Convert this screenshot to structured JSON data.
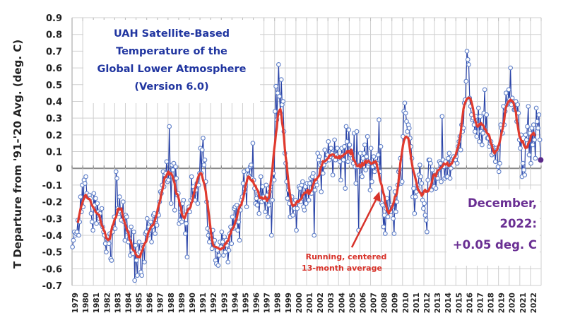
{
  "chart_data": {
    "type": "line",
    "title": [
      "UAH Satellite-Based",
      "Temperature of the",
      "Global Lower Atmosphere",
      "(Version 6.0)"
    ],
    "xlabel": "",
    "ylabel": "T Departure from '91-'20 Avg. (deg. C)",
    "ylim": [
      -0.7,
      0.9
    ],
    "yticks": [
      0.9,
      0.8,
      0.7,
      0.6,
      0.5,
      0.4,
      0.3,
      0.2,
      0.1,
      0,
      -0.1,
      -0.2,
      -0.3,
      -0.4,
      -0.5,
      -0.6,
      -0.7
    ],
    "ytick_labels": [
      "0.9",
      "0.8",
      "0.7",
      "0.6",
      "0.5",
      "0.4",
      "0.3",
      "0.2",
      "0.1",
      "0",
      "-0.1",
      "-0.2",
      "-0.3",
      "-0.4",
      "-0.5",
      "-0.6",
      "-0.7"
    ],
    "xlim": [
      1979,
      2023
    ],
    "xtick_labels": [
      "1979",
      "1980",
      "1981",
      "1982",
      "1983",
      "1984",
      "1985",
      "1986",
      "1987",
      "1988",
      "1989",
      "1990",
      "1991",
      "1992",
      "1993",
      "1994",
      "1995",
      "1996",
      "1997",
      "1998",
      "1999",
      "2000",
      "2001",
      "2002",
      "2003",
      "2004",
      "2005",
      "2006",
      "2007",
      "2008",
      "2009",
      "2010",
      "2011",
      "2012",
      "2013",
      "2014",
      "2015",
      "2016",
      "2017",
      "2018",
      "2019",
      "2020",
      "2021",
      "2022"
    ],
    "grid": true,
    "start": "1979-01",
    "series": [
      {
        "name": "Monthly anomaly",
        "color": "#2a44a8",
        "marker": "open-circle",
        "values": [
          -0.47,
          -0.43,
          -0.38,
          -0.4,
          -0.39,
          -0.38,
          -0.31,
          -0.4,
          -0.32,
          -0.17,
          -0.26,
          -0.1,
          -0.23,
          -0.07,
          -0.09,
          -0.05,
          -0.15,
          -0.17,
          -0.17,
          -0.16,
          -0.18,
          -0.27,
          -0.32,
          -0.37,
          -0.15,
          -0.22,
          -0.18,
          -0.33,
          -0.21,
          -0.26,
          -0.3,
          -0.27,
          -0.33,
          -0.24,
          -0.35,
          -0.38,
          -0.4,
          -0.45,
          -0.5,
          -0.41,
          -0.43,
          -0.45,
          -0.39,
          -0.54,
          -0.55,
          -0.38,
          -0.35,
          -0.29,
          -0.36,
          -0.02,
          -0.06,
          -0.24,
          -0.27,
          -0.17,
          -0.26,
          -0.31,
          -0.27,
          -0.2,
          -0.32,
          -0.43,
          -0.28,
          -0.29,
          -0.38,
          -0.44,
          -0.42,
          -0.52,
          -0.35,
          -0.49,
          -0.51,
          -0.38,
          -0.67,
          -0.46,
          -0.55,
          -0.64,
          -0.51,
          -0.44,
          -0.5,
          -0.62,
          -0.64,
          -0.46,
          -0.47,
          -0.56,
          -0.39,
          -0.38,
          -0.3,
          -0.4,
          -0.35,
          -0.37,
          -0.32,
          -0.44,
          -0.35,
          -0.28,
          -0.27,
          -0.39,
          -0.33,
          -0.34,
          -0.27,
          -0.28,
          -0.2,
          -0.14,
          -0.15,
          -0.1,
          -0.02,
          -0.11,
          -0.04,
          -0.03,
          0.04,
          -0.08,
          -0.07,
          0.25,
          -0.03,
          -0.21,
          0.02,
          -0.01,
          0.03,
          -0.25,
          0.01,
          -0.06,
          -0.16,
          -0.15,
          -0.33,
          -0.31,
          -0.26,
          -0.32,
          -0.21,
          -0.19,
          -0.28,
          -0.39,
          -0.33,
          -0.53,
          -0.25,
          -0.23,
          -0.26,
          -0.19,
          -0.05,
          -0.18,
          -0.11,
          -0.13,
          -0.19,
          -0.13,
          -0.09,
          -0.21,
          -0.1,
          -0.03,
          0.12,
          -0.03,
          0.11,
          0.18,
          0.02,
          0.05,
          -0.08,
          -0.2,
          -0.36,
          -0.4,
          -0.44,
          -0.37,
          -0.4,
          -0.48,
          -0.37,
          -0.44,
          -0.43,
          -0.55,
          -0.57,
          -0.49,
          -0.58,
          -0.52,
          -0.44,
          -0.47,
          -0.38,
          -0.44,
          -0.52,
          -0.41,
          -0.5,
          -0.43,
          -0.46,
          -0.56,
          -0.49,
          -0.39,
          -0.35,
          -0.45,
          -0.29,
          -0.36,
          -0.24,
          -0.23,
          -0.32,
          -0.22,
          -0.37,
          -0.32,
          -0.43,
          -0.25,
          -0.19,
          -0.17,
          -0.09,
          -0.02,
          -0.14,
          -0.11,
          -0.23,
          -0.01,
          -0.04,
          -0.05,
          0.01,
          0.02,
          -0.06,
          0.15,
          -0.07,
          -0.12,
          -0.21,
          -0.18,
          -0.22,
          -0.15,
          -0.27,
          -0.19,
          -0.05,
          -0.2,
          -0.11,
          -0.17,
          -0.19,
          -0.26,
          -0.1,
          -0.16,
          -0.29,
          -0.22,
          -0.14,
          -0.11,
          -0.4,
          -0.19,
          -0.03,
          -0.07,
          0.34,
          0.49,
          0.29,
          0.45,
          0.62,
          0.43,
          0.33,
          0.53,
          0.38,
          0.4,
          0.22,
          0.09,
          0.03,
          -0.08,
          -0.18,
          -0.13,
          -0.21,
          -0.29,
          -0.19,
          -0.17,
          -0.28,
          -0.24,
          -0.24,
          -0.19,
          -0.37,
          -0.24,
          -0.2,
          -0.11,
          -0.12,
          -0.2,
          -0.1,
          -0.08,
          -0.23,
          -0.25,
          -0.11,
          -0.21,
          -0.09,
          -0.14,
          -0.19,
          -0.09,
          -0.06,
          -0.15,
          -0.05,
          -0.03,
          -0.4,
          -0.13,
          -0.08,
          -0.1,
          0.09,
          0.05,
          0.07,
          0.02,
          -0.14,
          0.03,
          -0.03,
          0.02,
          0.11,
          0.04,
          0.06,
          0.08,
          0.16,
          0.05,
          0.07,
          0.12,
          0.09,
          -0.04,
          0.06,
          0.17,
          0.05,
          0.08,
          0.12,
          0.07,
          0.06,
          0.04,
          -0.07,
          0.12,
          0.08,
          0.05,
          0.13,
          -0.12,
          0.25,
          0.16,
          0.04,
          0.23,
          0.14,
          0.08,
          0.1,
          0.06,
          0.03,
          0.21,
          0.01,
          -0.09,
          0.22,
          0.01,
          -0.37,
          0.02,
          0.09,
          -0.04,
          -0.05,
          0.06,
          0.09,
          0.14,
          -0.01,
          0.07,
          0.19,
          0.03,
          0.04,
          -0.13,
          0.12,
          -0.08,
          0.01,
          0.07,
          -0.02,
          0.02,
          0.04,
          0.03,
          0.08,
          0.29,
          -0.02,
          0.13,
          -0.21,
          -0.22,
          -0.35,
          -0.28,
          -0.39,
          -0.24,
          -0.18,
          -0.29,
          -0.26,
          -0.12,
          -0.26,
          -0.22,
          -0.23,
          -0.3,
          -0.39,
          -0.14,
          -0.26,
          -0.2,
          -0.1,
          -0.02,
          -0.01,
          0.06,
          -0.09,
          -0.08,
          0.19,
          0.34,
          0.39,
          0.33,
          0.28,
          0.22,
          0.26,
          0.24,
          0.18,
          0.13,
          0.06,
          -0.17,
          -0.12,
          -0.27,
          -0.17,
          -0.14,
          -0.1,
          -0.12,
          -0.04,
          0.02,
          -0.05,
          -0.09,
          -0.19,
          -0.24,
          -0.21,
          -0.28,
          -0.31,
          -0.38,
          -0.07,
          0.05,
          0.05,
          0.03,
          -0.13,
          -0.01,
          -0.11,
          -0.11,
          -0.04,
          -0.12,
          -0.05,
          -0.06,
          -0.01,
          0.04,
          0.03,
          -0.08,
          0.31,
          0.05,
          0.01,
          -0.06,
          0.04,
          -0.05,
          -0.05,
          0.06,
          0.09,
          -0.06,
          0.0,
          0.05,
          0.06,
          0.07,
          0.05,
          0.05,
          0.07,
          0.03,
          0.13,
          0.16,
          0.19,
          0.11,
          0.26,
          0.22,
          0.24,
          0.39,
          0.41,
          0.52,
          0.7,
          0.65,
          0.62,
          0.42,
          0.37,
          0.32,
          0.29,
          0.3,
          0.26,
          0.22,
          0.31,
          0.19,
          0.26,
          0.36,
          0.16,
          0.31,
          0.22,
          0.14,
          0.21,
          0.33,
          0.47,
          0.23,
          0.32,
          0.18,
          0.18,
          0.13,
          0.15,
          0.16,
          0.08,
          0.13,
          0.09,
          0.12,
          0.04,
          0.12,
          0.11,
          0.01,
          -0.02,
          0.03,
          0.26,
          0.24,
          0.21,
          0.37,
          0.26,
          0.34,
          0.45,
          0.38,
          0.39,
          0.47,
          0.41,
          0.6,
          0.38,
          0.42,
          0.4,
          0.35,
          0.35,
          0.4,
          0.28,
          0.38,
          0.33,
          0.17,
          0.12,
          0.2,
          -0.05,
          0.03,
          -0.01,
          -0.04,
          0.2,
          0.17,
          0.25,
          0.37,
          0.08,
          0.21,
          0.03,
          0.24,
          0.14,
          0.26,
          0.17,
          0.06,
          0.36,
          0.28,
          0.24,
          0.32,
          0.17,
          0.05
        ]
      },
      {
        "name": "Running, centered 13-month average",
        "color": "#e03a2e",
        "window_months": 13
      }
    ],
    "annotations": [
      {
        "text": [
          "Running, centered",
          "13-month average"
        ],
        "color": "#d8322a",
        "arrow_to": {
          "x": "2007-10",
          "y": -0.05
        }
      },
      {
        "text": [
          "December,",
          "2022:",
          "+0.05 deg. C"
        ],
        "color": "#6a2f93"
      }
    ],
    "last_point": {
      "label": "December, 2022",
      "value": 0.05,
      "color": "#5b2a8a"
    }
  }
}
